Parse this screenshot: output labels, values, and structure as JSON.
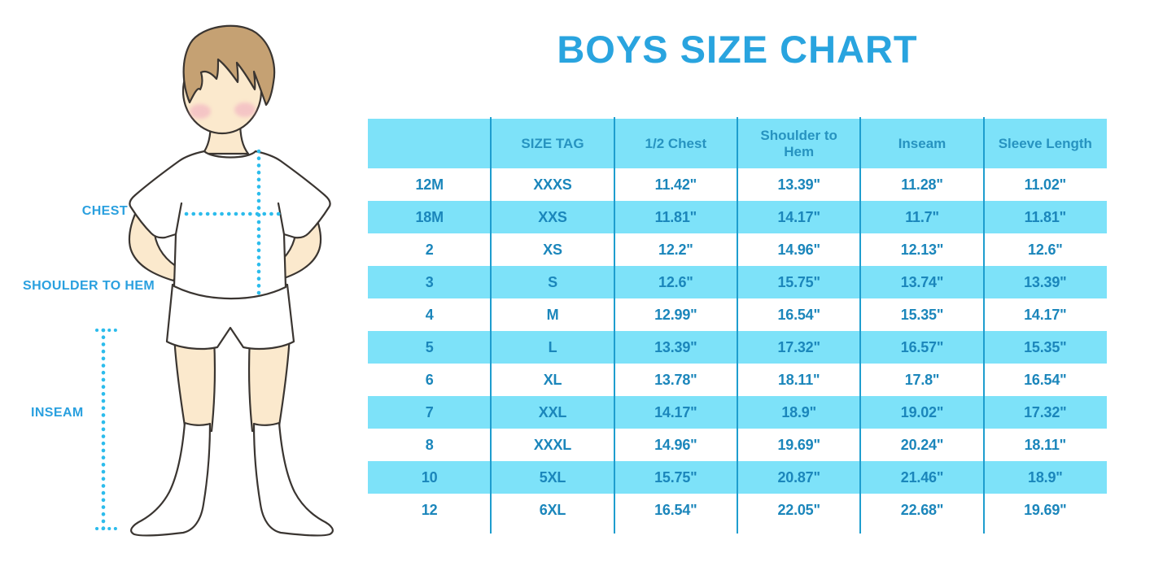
{
  "title": "BOYS SIZE CHART",
  "figure": {
    "description": "illustration of a boy in white t-shirt, shorts and knee socks with dotted measurement guides",
    "labels": {
      "chest": "CHEST",
      "shoulder_to_hem": "SHOULDER TO HEM",
      "inseam": "INSEAM"
    }
  },
  "table": {
    "headers": [
      "",
      "SIZE TAG",
      "1/2 Chest",
      "Shoulder to Hem",
      "Inseam",
      "Sleeve Length"
    ],
    "rows": [
      [
        "12M",
        "XXXS",
        "11.42\"",
        "13.39\"",
        "11.28\"",
        "11.02\""
      ],
      [
        "18M",
        "XXS",
        "11.81\"",
        "14.17\"",
        "11.7\"",
        "11.81\""
      ],
      [
        "2",
        "XS",
        "12.2\"",
        "14.96\"",
        "12.13\"",
        "12.6\""
      ],
      [
        "3",
        "S",
        "12.6\"",
        "15.75\"",
        "13.74\"",
        "13.39\""
      ],
      [
        "4",
        "M",
        "12.99\"",
        "16.54\"",
        "15.35\"",
        "14.17\""
      ],
      [
        "5",
        "L",
        "13.39\"",
        "17.32\"",
        "16.57\"",
        "15.35\""
      ],
      [
        "6",
        "XL",
        "13.78\"",
        "18.11\"",
        "17.8\"",
        "16.54\""
      ],
      [
        "7",
        "XXL",
        "14.17\"",
        "18.9\"",
        "19.02\"",
        "17.32\""
      ],
      [
        "8",
        "XXXL",
        "14.96\"",
        "19.69\"",
        "20.24\"",
        "18.11\""
      ],
      [
        "10",
        "5XL",
        "15.75\"",
        "20.87\"",
        "21.46\"",
        "18.9\""
      ],
      [
        "12",
        "6XL",
        "16.54\"",
        "22.05\"",
        "22.68\"",
        "19.69\""
      ]
    ]
  },
  "colors": {
    "title_blue": "#29a4df",
    "label_blue": "#2aa0df",
    "dotted_cyan": "#2cbcec",
    "row_cyan": "#7de2f9",
    "header_text": "#2793c0",
    "cell_text": "#1b86bb",
    "divider_line": "#1e9dce",
    "hair": "#c5a173",
    "skin": "#fbe9cd",
    "blush": "#f0a8bf"
  },
  "chart_data": {
    "type": "table",
    "title": "BOYS SIZE CHART",
    "columns": [
      "",
      "SIZE TAG",
      "1/2 Chest",
      "Shoulder to Hem",
      "Inseam",
      "Sleeve Length"
    ],
    "rows": [
      [
        "12M",
        "XXXS",
        "11.42\"",
        "13.39\"",
        "11.28\"",
        "11.02\""
      ],
      [
        "18M",
        "XXS",
        "11.81\"",
        "14.17\"",
        "11.7\"",
        "11.81\""
      ],
      [
        "2",
        "XS",
        "12.2\"",
        "14.96\"",
        "12.13\"",
        "12.6\""
      ],
      [
        "3",
        "S",
        "12.6\"",
        "15.75\"",
        "13.74\"",
        "13.39\""
      ],
      [
        "4",
        "M",
        "12.99\"",
        "16.54\"",
        "15.35\"",
        "14.17\""
      ],
      [
        "5",
        "L",
        "13.39\"",
        "17.32\"",
        "16.57\"",
        "15.35\""
      ],
      [
        "6",
        "XL",
        "13.78\"",
        "18.11\"",
        "17.8\"",
        "16.54\""
      ],
      [
        "7",
        "XXL",
        "14.17\"",
        "18.9\"",
        "19.02\"",
        "17.32\""
      ],
      [
        "8",
        "XXXL",
        "14.96\"",
        "19.69\"",
        "20.24\"",
        "18.11\""
      ],
      [
        "10",
        "5XL",
        "15.75\"",
        "20.87\"",
        "21.46\"",
        "18.9\""
      ],
      [
        "12",
        "6XL",
        "16.54\"",
        "22.05\"",
        "22.68\"",
        "19.69\""
      ]
    ],
    "units": "inches",
    "row_striping": "header cyan, then rows alternate white/cyan starting white",
    "legend_position": "none",
    "grid": "vertical column dividers only"
  }
}
